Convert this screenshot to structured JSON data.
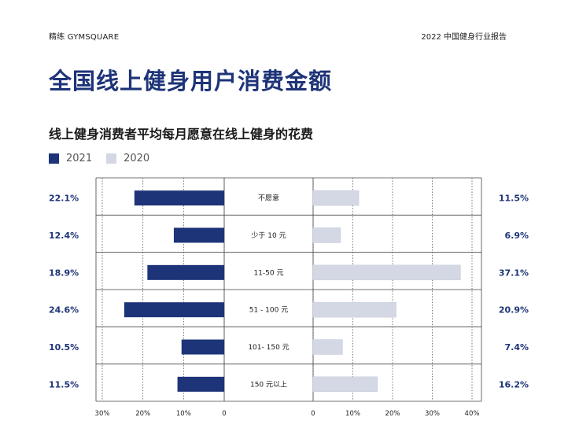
{
  "header": {
    "brand": "精练 GYMSQUARE",
    "report": "2022 中国健身行业报告",
    "title": "全国线上健身用户消费金额"
  },
  "chart_data": {
    "type": "bar",
    "title": "线上健身消费者平均每月愿意在线上健身的花费",
    "categories": [
      "不愿意",
      "少于 10 元",
      "11-50 元",
      "51 - 100 元",
      "101- 150 元",
      "150 元以上"
    ],
    "series": [
      {
        "name": "2021",
        "values": [
          22.1,
          12.4,
          18.9,
          24.6,
          10.5,
          11.5
        ],
        "labels": [
          "22.1%",
          "12.4%",
          "18.9%",
          "24.6%",
          "10.5%",
          "11.5%"
        ],
        "color": "#1e3478"
      },
      {
        "name": "2020",
        "values": [
          11.5,
          6.9,
          37.1,
          20.9,
          7.4,
          16.2
        ],
        "labels": [
          "11.5%",
          "6.9%",
          "37.1%",
          "20.9%",
          "7.4%",
          "16.2%"
        ],
        "color": "#d3d8e4"
      }
    ],
    "left_axis": {
      "ticks": [
        30,
        20,
        10,
        0
      ],
      "tick_labels": [
        "30%",
        "20%",
        "10%",
        "0"
      ],
      "range": [
        0,
        30
      ]
    },
    "right_axis": {
      "ticks": [
        0,
        10,
        20,
        30,
        40
      ],
      "tick_labels": [
        "0",
        "10%",
        "20%",
        "30%",
        "40%"
      ],
      "range": [
        0,
        40
      ]
    },
    "legend": "top-left",
    "grid": true,
    "label_color": "#1e3478"
  }
}
